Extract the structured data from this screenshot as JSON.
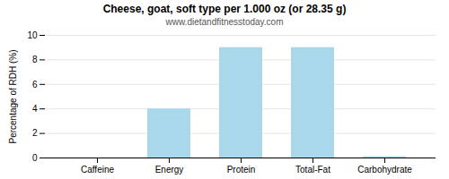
{
  "chart_data": {
    "type": "bar",
    "title": "Cheese, goat, soft type per 1.000 oz (or 28.35 g)",
    "subtitle": "www.dietandfitnesstoday.com",
    "categories": [
      "Caffeine",
      "Energy",
      "Protein",
      "Total-Fat",
      "Carbohydrate"
    ],
    "values": [
      0,
      4.0,
      9.0,
      9.0,
      0.1
    ],
    "color": "#a8d8ea",
    "ylabel": "Percentage of RDH (%)",
    "ylim": [
      0,
      10
    ],
    "yticks": [
      0,
      2,
      4,
      6,
      8,
      10
    ],
    "grid": true
  }
}
